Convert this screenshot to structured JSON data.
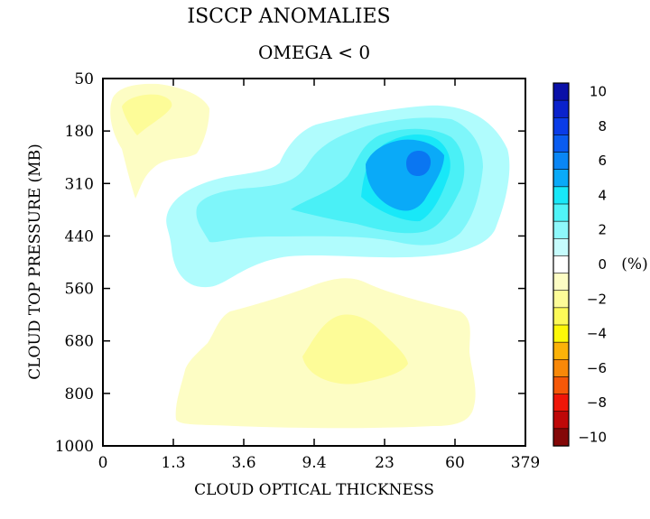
{
  "chart_data": {
    "type": "contour",
    "title": "ISCCP ANOMALIES",
    "subtitle": "OMEGA < 0",
    "xlabel": "CLOUD OPTICAL THICKNESS",
    "ylabel": "CLOUD TOP PRESSURE (MB)",
    "x_ticks": [
      "0",
      "1.3",
      "3.6",
      "9.4",
      "23",
      "60",
      "379"
    ],
    "y_ticks": [
      "50",
      "180",
      "310",
      "440",
      "560",
      "680",
      "800",
      "1000"
    ],
    "colorbar": {
      "unit": "(%)",
      "tick_labels": [
        "10",
        "8",
        "6",
        "4",
        "2",
        "0",
        "−2",
        "−4",
        "−6",
        "−8",
        "−10"
      ],
      "levels": [
        10,
        9,
        8,
        7,
        6,
        5,
        4,
        3,
        2,
        1,
        0,
        -1,
        -2,
        -3,
        -4,
        -5,
        -6,
        -7,
        -8,
        -9,
        -10
      ],
      "colors": [
        "#0a10a8",
        "#0a22cc",
        "#0a3ce8",
        "#0a5cf0",
        "#0a86f5",
        "#0aaaf8",
        "#18e8f8",
        "#50f4f8",
        "#8ef8fb",
        "#c6fcfd",
        "#ffffff",
        "#fdfdc4",
        "#fdfc98",
        "#fcfa58",
        "#fcf808",
        "#fbb208",
        "#f88808",
        "#f55808",
        "#ef1608",
        "#be0808",
        "#840808"
      ]
    },
    "anomaly_regions": [
      {
        "sign": "positive",
        "peak_percent": 6,
        "tau_range": [
          2,
          250
        ],
        "pressure_range": [
          150,
          600
        ],
        "peak_at": {
          "tau": 30,
          "pressure": 250
        }
      },
      {
        "sign": "negative",
        "peak_percent": -2,
        "tau_range": [
          0,
          6
        ],
        "pressure_range": [
          50,
          350
        ],
        "peak_at": {
          "tau": 0.6,
          "pressure": 130
        }
      },
      {
        "sign": "negative",
        "peak_percent": -2,
        "tau_range": [
          2,
          100
        ],
        "pressure_range": [
          560,
          960
        ],
        "peak_at": {
          "tau": 15,
          "pressure": 740
        }
      }
    ]
  }
}
